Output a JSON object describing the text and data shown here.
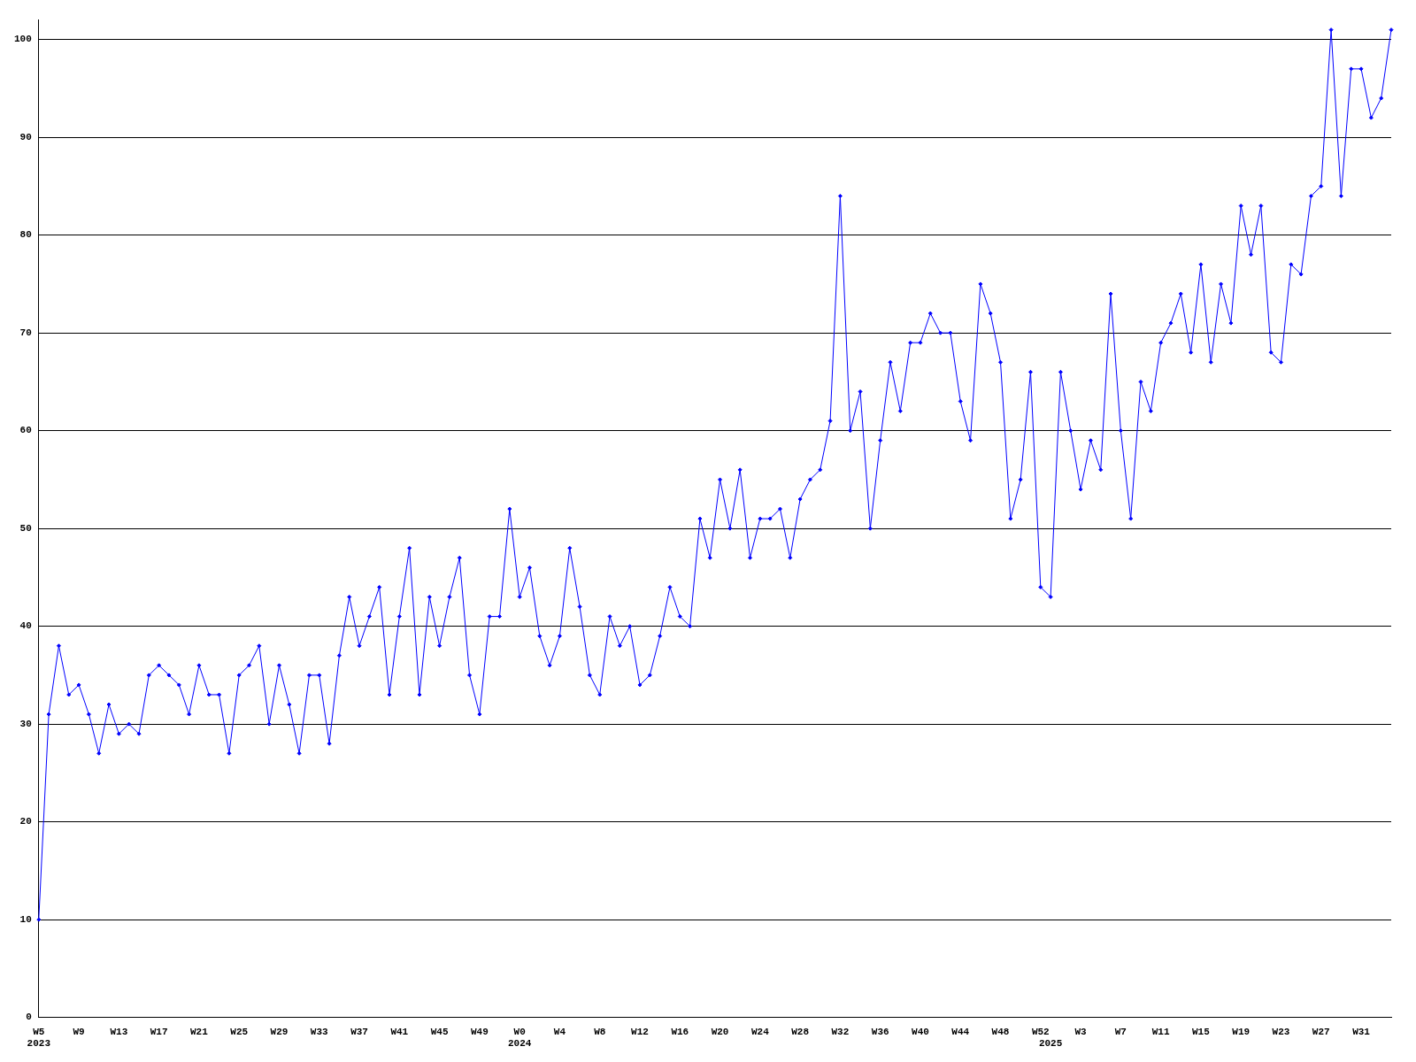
{
  "chart_data": {
    "type": "line",
    "categories": [
      "W5\n2023",
      null,
      null,
      null,
      "W9",
      null,
      null,
      null,
      "W13",
      null,
      null,
      null,
      "W17",
      null,
      null,
      null,
      "W21",
      null,
      null,
      null,
      "W25",
      null,
      null,
      null,
      "W29",
      null,
      null,
      null,
      "W33",
      null,
      null,
      null,
      "W37",
      null,
      null,
      null,
      "W41",
      null,
      null,
      null,
      "W45",
      null,
      null,
      null,
      "W49",
      null,
      null,
      null,
      "W0\n2024",
      null,
      null,
      null,
      "W4",
      null,
      null,
      null,
      "W8",
      null,
      null,
      null,
      "W12",
      null,
      null,
      null,
      "W16",
      null,
      null,
      null,
      "W20",
      null,
      null,
      null,
      "W24",
      null,
      null,
      null,
      "W28",
      null,
      null,
      null,
      "W32",
      null,
      null,
      null,
      "W36",
      null,
      null,
      null,
      "W40",
      null,
      null,
      null,
      "W44",
      null,
      null,
      null,
      "W48",
      null,
      null,
      null,
      "W52",
      "\n2025",
      null,
      null,
      "W3",
      null,
      null,
      null,
      "W7",
      null,
      null,
      null,
      "W11",
      null,
      null,
      null,
      "W15",
      null,
      null,
      null,
      "W19",
      null,
      null,
      null,
      "W23",
      null,
      null,
      null,
      "W27",
      null,
      null,
      null,
      "W31",
      null,
      null,
      null
    ],
    "series": [
      {
        "color": "#0000ff",
        "values": [
          10,
          31,
          38,
          33,
          34,
          31,
          27,
          32,
          29,
          30,
          29,
          35,
          36,
          35,
          34,
          31,
          36,
          33,
          33,
          27,
          35,
          36,
          38,
          30,
          36,
          32,
          27,
          35,
          35,
          28,
          37,
          43,
          38,
          41,
          44,
          33,
          41,
          48,
          33,
          43,
          38,
          43,
          47,
          35,
          31,
          41,
          41,
          52,
          43,
          46,
          39,
          36,
          39,
          48,
          42,
          35,
          33,
          41,
          38,
          40,
          34,
          35,
          39,
          44,
          41,
          40,
          51,
          47,
          55,
          50,
          56,
          47,
          51,
          51,
          52,
          47,
          53,
          55,
          56,
          61,
          84,
          60,
          64,
          50,
          59,
          67,
          62,
          69,
          69,
          72,
          70,
          70,
          63,
          59,
          75,
          72,
          67,
          51,
          55,
          66,
          44,
          43,
          66,
          60,
          54,
          59,
          56,
          74,
          60,
          51,
          65,
          62,
          69,
          71,
          74,
          68,
          77,
          67,
          75,
          71,
          83,
          78,
          83,
          68,
          67,
          77,
          76,
          84,
          85,
          101,
          84,
          97,
          97,
          92,
          94,
          101
        ]
      }
    ],
    "ylim": [
      0,
      102
    ],
    "yticks": [
      0,
      10,
      20,
      30,
      40,
      50,
      60,
      70,
      80,
      90,
      100
    ],
    "grid": "y",
    "marker": "diamond",
    "line_style": "solid",
    "legend": false
  }
}
